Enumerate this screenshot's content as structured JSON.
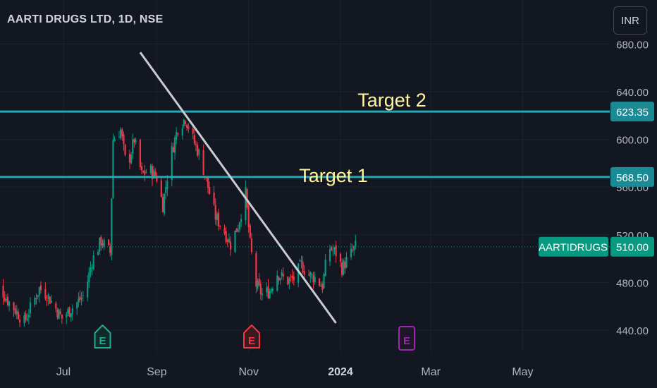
{
  "header": {
    "title": "AARTI DRUGS LTD, 1D, NSE",
    "currency_button": "INR"
  },
  "colors": {
    "background": "#131722",
    "up": "#089981",
    "down": "#f23645",
    "level": "#22aab6",
    "trendline": "#c9cbd1",
    "annotation": "#fff59d",
    "grid": "#1e222d",
    "axis_text": "#b2b5be"
  },
  "chart_data": {
    "type": "candlestick",
    "title": "AARTI DRUGS LTD, 1D, NSE",
    "symbol": "AARTIDRUGS",
    "last_price": 510.0,
    "y_ticks": [
      "680.00",
      "640.00",
      "600.00",
      "560.00",
      "520.00",
      "480.00",
      "440.00"
    ],
    "y_tick_values": [
      680,
      640,
      600,
      560,
      520,
      480,
      440
    ],
    "x_ticks": [
      "Jul",
      "Sep",
      "Nov",
      "2024",
      "Mar",
      "May"
    ],
    "ylim": [
      422,
      692
    ],
    "levels": [
      {
        "name": "Target 2",
        "value": 623.35,
        "label": "623.35"
      },
      {
        "name": "Target 1",
        "value": 568.5,
        "label": "568.50"
      }
    ],
    "trendline": {
      "from": [
        "2023-08-21",
        673
      ],
      "to": [
        "2023-12-29",
        446
      ]
    },
    "earnings_markers": [
      {
        "label": "E",
        "date": "2023-07-27",
        "kind": "past-positive"
      },
      {
        "label": "E",
        "date": "2023-11-03",
        "kind": "past-negative"
      },
      {
        "label": "E",
        "date": "2024-02-14",
        "kind": "upcoming"
      }
    ],
    "price_path": [
      [
        "2023-05-15",
        485
      ],
      [
        "2023-05-25",
        465
      ],
      [
        "2023-06-05",
        447
      ],
      [
        "2023-06-15",
        475
      ],
      [
        "2023-06-20",
        470
      ],
      [
        "2023-06-30",
        450
      ],
      [
        "2023-07-10",
        463
      ],
      [
        "2023-07-15",
        470
      ],
      [
        "2023-07-20",
        498
      ],
      [
        "2023-07-26",
        515
      ],
      [
        "2023-08-01",
        505
      ],
      [
        "2023-08-03",
        600
      ],
      [
        "2023-08-08",
        608
      ],
      [
        "2023-08-12",
        575
      ],
      [
        "2023-08-17",
        600
      ],
      [
        "2023-08-22",
        570
      ],
      [
        "2023-08-27",
        575
      ],
      [
        "2023-09-01",
        568
      ],
      [
        "2023-09-05",
        545
      ],
      [
        "2023-09-10",
        585
      ],
      [
        "2023-09-15",
        610
      ],
      [
        "2023-09-20",
        618
      ],
      [
        "2023-09-25",
        600
      ],
      [
        "2023-09-30",
        585
      ],
      [
        "2023-10-05",
        560
      ],
      [
        "2023-10-10",
        535
      ],
      [
        "2023-10-15",
        525
      ],
      [
        "2023-10-20",
        512
      ],
      [
        "2023-10-25",
        528
      ],
      [
        "2023-10-30",
        555
      ],
      [
        "2023-11-02",
        512
      ],
      [
        "2023-11-06",
        478
      ],
      [
        "2023-11-10",
        470
      ],
      [
        "2023-11-15",
        473
      ],
      [
        "2023-11-20",
        488
      ],
      [
        "2023-11-26",
        481
      ],
      [
        "2023-12-01",
        483
      ],
      [
        "2023-12-06",
        495
      ],
      [
        "2023-12-10",
        487
      ],
      [
        "2023-12-15",
        484
      ],
      [
        "2023-12-20",
        477
      ],
      [
        "2023-12-24",
        510
      ],
      [
        "2023-12-29",
        505
      ],
      [
        "2024-01-02",
        492
      ],
      [
        "2024-01-06",
        500
      ],
      [
        "2024-01-11",
        510
      ]
    ]
  },
  "annotations": {
    "target2": "Target 2",
    "target1": "Target 1"
  },
  "price_labels": {
    "symbol": "AARTIDRUGS",
    "last": "510.00",
    "target2": "623.35",
    "target1": "568.50"
  }
}
